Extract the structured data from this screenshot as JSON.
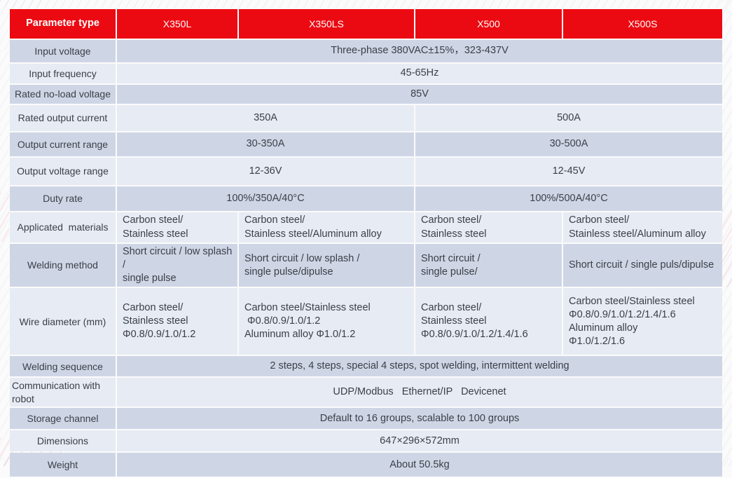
{
  "colors": {
    "header_red": "#ec0a12",
    "row_dark": "#ced6e6",
    "row_light": "#e7ebf3",
    "text": "#3b4048"
  },
  "table": {
    "header": {
      "param_col": "Parameter type",
      "models": [
        "X350L",
        "X350LS",
        "X500",
        "X500S"
      ]
    },
    "rows": [
      {
        "label": "Input voltage",
        "cells": [
          {
            "text": "Three-phase 380VAC±15%，323-437V",
            "span": 4
          }
        ]
      },
      {
        "label": "Input frequency",
        "cells": [
          {
            "text": "45-65Hz",
            "span": 4
          }
        ]
      },
      {
        "label": "Rated no-load voltage",
        "cells": [
          {
            "text": "85V",
            "span": 4
          }
        ]
      },
      {
        "label": "Rated output current",
        "cells": [
          {
            "text": "350A",
            "span": 2
          },
          {
            "text": "500A",
            "span": 2
          }
        ]
      },
      {
        "label": "Output current range",
        "cells": [
          {
            "text": "30-350A",
            "span": 2
          },
          {
            "text": "30-500A",
            "span": 2
          }
        ]
      },
      {
        "label": "Output voltage range",
        "cells": [
          {
            "text": "12-36V",
            "span": 2
          },
          {
            "text": "12-45V",
            "span": 2
          }
        ]
      },
      {
        "label": "Duty rate",
        "cells": [
          {
            "text": "100%/350A/40°C",
            "span": 2
          },
          {
            "text": "100%/500A/40°C",
            "span": 2
          }
        ]
      },
      {
        "label": "Applicated  materials",
        "cells": [
          {
            "lines": [
              "Carbon steel/",
              "Stainless steel"
            ],
            "span": 1
          },
          {
            "lines": [
              "Carbon steel/",
              "Stainless steel/Aluminum alloy"
            ],
            "span": 1
          },
          {
            "lines": [
              "Carbon steel/",
              "Stainless steel"
            ],
            "span": 1
          },
          {
            "lines": [
              "Carbon steel/",
              "Stainless steel/Aluminum alloy"
            ],
            "span": 1
          }
        ]
      },
      {
        "label": "Welding method",
        "cells": [
          {
            "lines": [
              "Short circuit / low splash /",
              "single pulse"
            ],
            "span": 1
          },
          {
            "lines": [
              "Short circuit / low splash /",
              "single pulse/dipulse"
            ],
            "span": 1
          },
          {
            "lines": [
              "Short circuit /",
              "single pulse/"
            ],
            "span": 1
          },
          {
            "lines": [
              "Short circuit / single puls/dipulse"
            ],
            "span": 1
          }
        ]
      },
      {
        "label": "Wire diameter (mm)",
        "cells": [
          {
            "lines": [
              "Carbon steel/",
              "Stainless steel",
              "Φ0.8/0.9/1.0/1.2"
            ],
            "span": 1
          },
          {
            "lines": [
              "Carbon steel/Stainless steel",
              " Φ0.8/0.9/1.0/1.2",
              "Aluminum alloy Φ1.0/1.2"
            ],
            "span": 1
          },
          {
            "lines": [
              "Carbon steel/",
              "Stainless steel",
              "Φ0.8/0.9/1.0/1.2/1.4/1.6"
            ],
            "span": 1
          },
          {
            "lines": [
              "Carbon steel/Stainless steel",
              "Φ0.8/0.9/1.0/1.2/1.4/1.6",
              "Aluminum alloy",
              "Φ1.0/1.2/1.6"
            ],
            "span": 1
          }
        ]
      },
      {
        "label": "Welding sequence",
        "cells": [
          {
            "text": "2 steps, 4 steps, special 4 steps, spot welding, intermittent welding",
            "span": 4
          }
        ]
      },
      {
        "label": "Communication with robot",
        "cells": [
          {
            "text": "UDP/Modbus   Ethernet/IP   Devicenet",
            "span": 4
          }
        ]
      },
      {
        "label": "Storage channel",
        "cells": [
          {
            "text": "Default to 16 groups, scalable to 100 groups",
            "span": 4
          }
        ]
      },
      {
        "label": "Dimensions",
        "cells": [
          {
            "text": "647×296×572mm",
            "span": 4
          }
        ]
      },
      {
        "label": "Weight",
        "cells": [
          {
            "text": "About 50.5kg",
            "span": 4
          }
        ]
      }
    ]
  }
}
